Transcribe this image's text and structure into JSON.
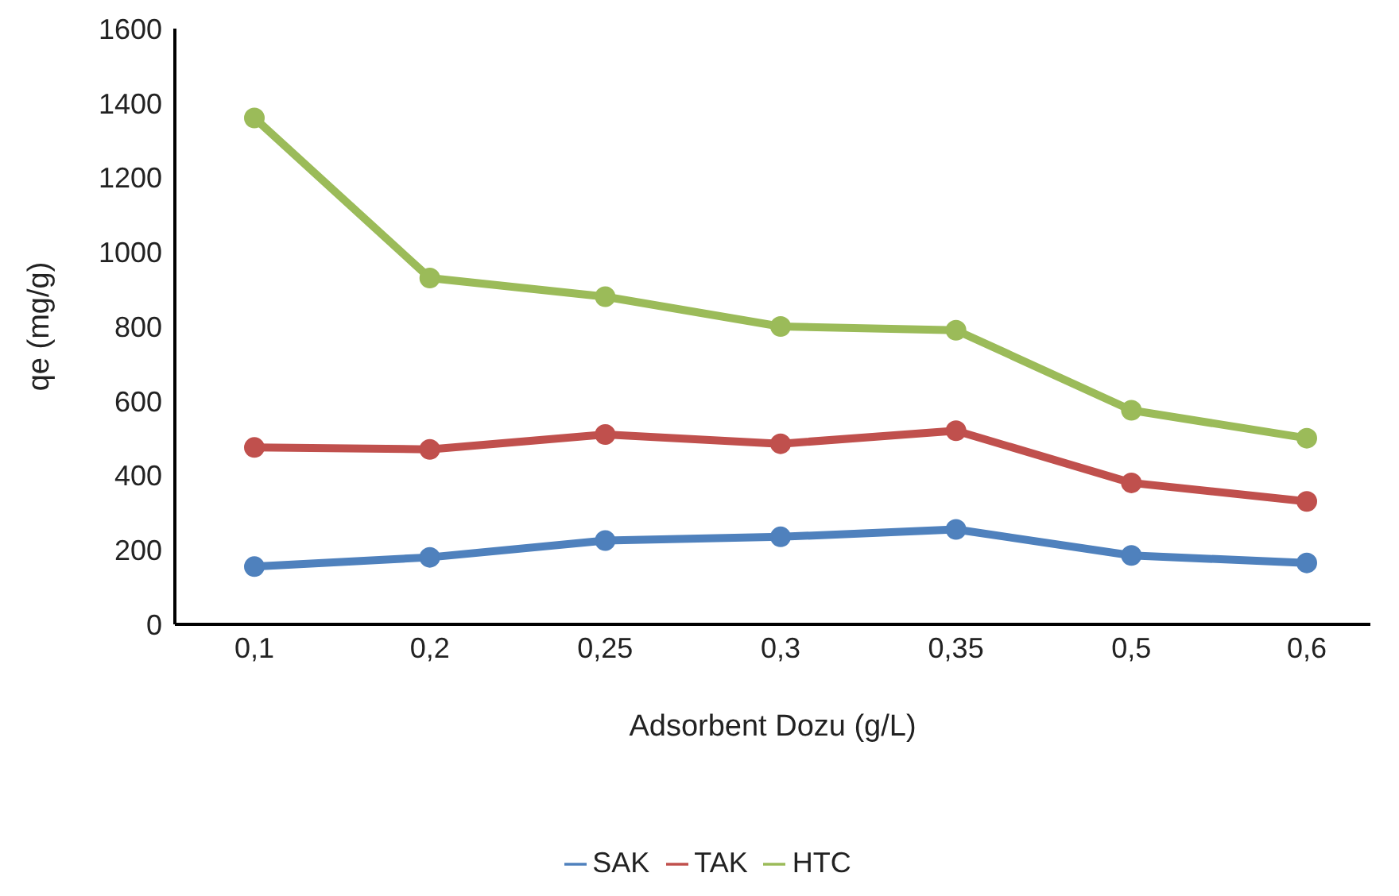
{
  "chart_data": {
    "type": "line",
    "xlabel": "Adsorbent Dozu (g/L)",
    "ylabel": "qe (mg/g)",
    "categories": [
      "0,1",
      "0,2",
      "0,25",
      "0,3",
      "0,35",
      "0,5",
      "0,6"
    ],
    "series": [
      {
        "name": "SAK",
        "color": "#4f81bd",
        "values": [
          155,
          180,
          225,
          235,
          255,
          185,
          165
        ]
      },
      {
        "name": "TAK",
        "color": "#c0504d",
        "values": [
          475,
          470,
          510,
          485,
          520,
          380,
          330
        ]
      },
      {
        "name": "HTC",
        "color": "#9bbb59",
        "values": [
          1360,
          930,
          880,
          800,
          790,
          575,
          500
        ]
      }
    ],
    "ylim": [
      0,
      1600
    ],
    "yticks": [
      0,
      200,
      400,
      600,
      800,
      1000,
      1200,
      1400,
      1600
    ],
    "grid": false,
    "legend": "bottom",
    "marker": "circle",
    "line_style": "solid"
  }
}
